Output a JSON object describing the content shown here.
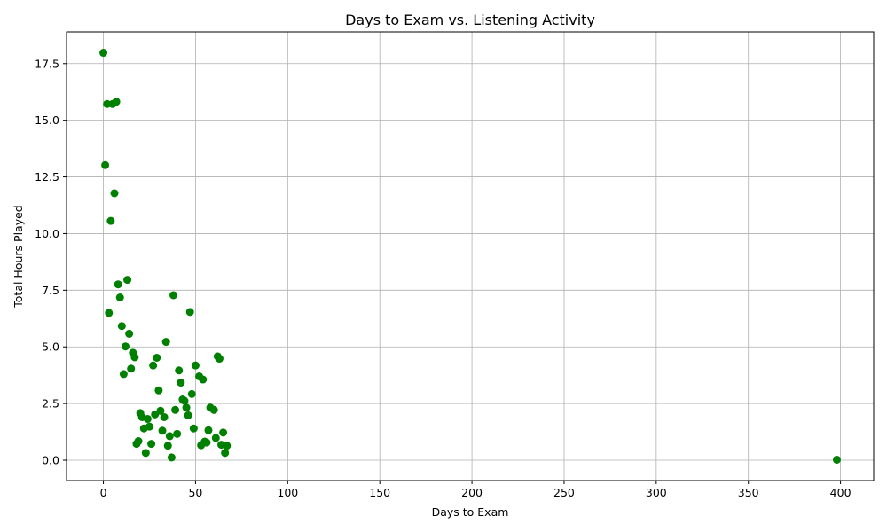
{
  "chart_data": {
    "type": "scatter",
    "title": "Days to Exam vs. Listening Activity",
    "xlabel": "Days to Exam",
    "ylabel": "Total Hours Played",
    "xlim": [
      -20,
      418
    ],
    "ylim": [
      -0.9,
      18.9
    ],
    "xticks": [
      0,
      50,
      100,
      150,
      200,
      250,
      300,
      350,
      400
    ],
    "xtick_labels": [
      "0",
      "50",
      "100",
      "150",
      "200",
      "250",
      "300",
      "350",
      "400"
    ],
    "yticks": [
      0,
      2.5,
      5,
      7.5,
      10,
      12.5,
      15,
      17.5
    ],
    "ytick_labels": [
      "0.0",
      "2.5",
      "5.0",
      "7.5",
      "10.0",
      "12.5",
      "15.0",
      "17.5"
    ],
    "grid": true,
    "marker_color": "#008000",
    "points": [
      [
        0,
        17.98
      ],
      [
        1,
        13.02
      ],
      [
        2,
        15.72
      ],
      [
        3,
        6.5
      ],
      [
        4,
        10.56
      ],
      [
        5,
        15.72
      ],
      [
        6,
        11.78
      ],
      [
        7,
        15.82
      ],
      [
        8,
        7.76
      ],
      [
        9,
        7.18
      ],
      [
        10,
        5.92
      ],
      [
        11,
        3.8
      ],
      [
        12,
        5.02
      ],
      [
        13,
        7.96
      ],
      [
        14,
        5.58
      ],
      [
        15,
        4.04
      ],
      [
        16,
        4.74
      ],
      [
        17,
        4.54
      ],
      [
        18,
        0.72
      ],
      [
        19,
        0.84
      ],
      [
        20,
        2.08
      ],
      [
        21,
        1.9
      ],
      [
        22,
        1.4
      ],
      [
        23,
        0.32
      ],
      [
        24,
        1.82
      ],
      [
        25,
        1.48
      ],
      [
        26,
        0.72
      ],
      [
        27,
        4.18
      ],
      [
        28,
        2.02
      ],
      [
        29,
        4.52
      ],
      [
        30,
        3.08
      ],
      [
        31,
        2.18
      ],
      [
        32,
        1.3
      ],
      [
        33,
        1.9
      ],
      [
        34,
        5.22
      ],
      [
        35,
        0.64
      ],
      [
        36,
        1.06
      ],
      [
        37,
        0.12
      ],
      [
        38,
        7.28
      ],
      [
        39,
        2.22
      ],
      [
        40,
        1.16
      ],
      [
        41,
        3.96
      ],
      [
        42,
        3.42
      ],
      [
        43,
        2.68
      ],
      [
        44,
        2.62
      ],
      [
        45,
        2.32
      ],
      [
        46,
        1.98
      ],
      [
        47,
        6.54
      ],
      [
        48,
        2.92
      ],
      [
        49,
        1.4
      ],
      [
        50,
        4.18
      ],
      [
        52,
        3.7
      ],
      [
        53,
        0.66
      ],
      [
        54,
        3.56
      ],
      [
        55,
        0.82
      ],
      [
        56,
        0.78
      ],
      [
        57,
        1.32
      ],
      [
        58,
        2.32
      ],
      [
        60,
        2.22
      ],
      [
        61,
        0.98
      ],
      [
        62,
        4.58
      ],
      [
        63,
        4.48
      ],
      [
        64,
        0.68
      ],
      [
        65,
        1.22
      ],
      [
        66,
        0.32
      ],
      [
        67,
        0.64
      ],
      [
        398,
        0.02
      ]
    ]
  }
}
